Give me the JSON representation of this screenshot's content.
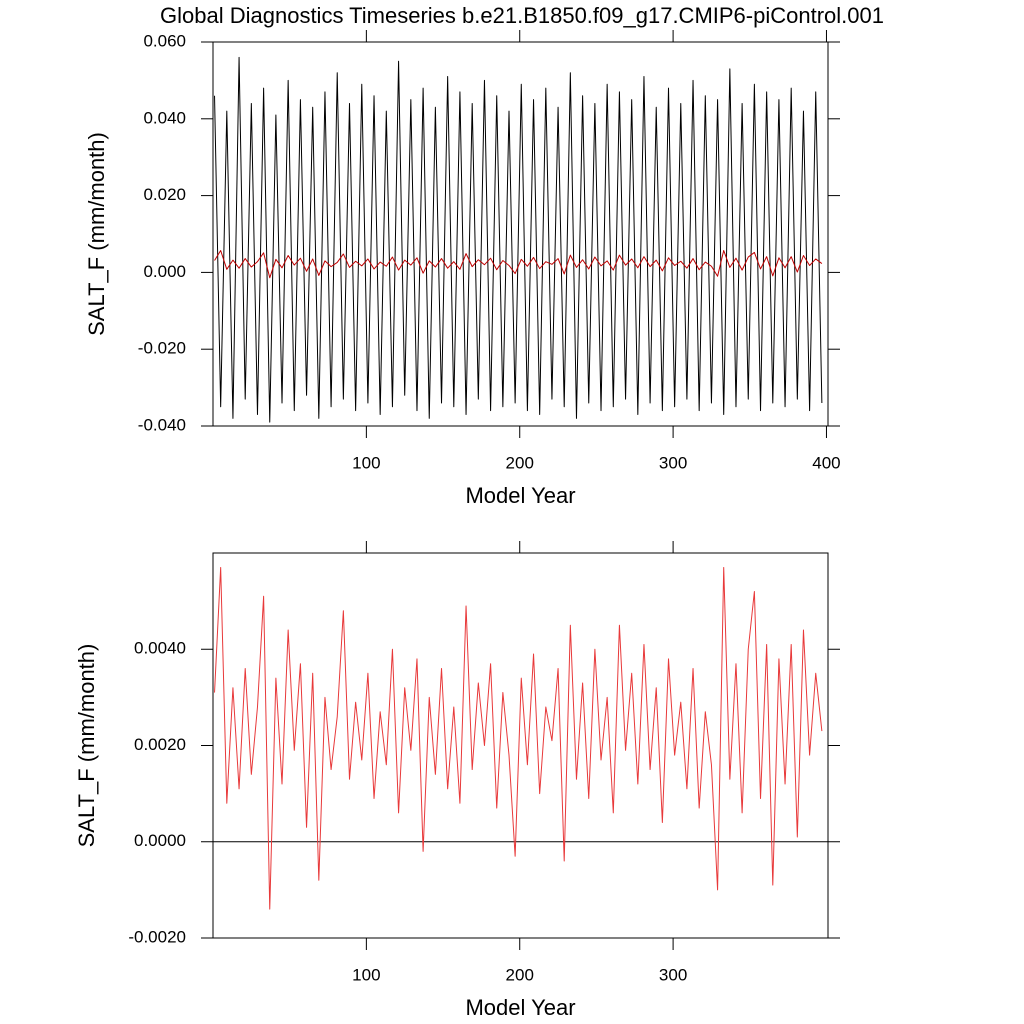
{
  "charts": [
    {
      "type": "line",
      "title": "Global Diagnostics Timeseries b.e21.B1850.f09_g17.CMIP6-piControl.001",
      "x_label": "Model Year",
      "y_label": "SALT_F (mm/month)",
      "xlim": [
        0,
        401
      ],
      "xticks": [
        100,
        200,
        300,
        400
      ],
      "ylim": [
        -0.04,
        0.06
      ],
      "yticks": [
        {
          "value": -0.04,
          "label": "-0.040"
        },
        {
          "value": -0.02,
          "label": "-0.020"
        },
        {
          "value": 0,
          "label": "0.000"
        },
        {
          "value": 0.02,
          "label": "0.020"
        },
        {
          "value": 0.04,
          "label": "0.040"
        },
        {
          "value": 0.06,
          "label": "0.060"
        }
      ],
      "x": [
        1,
        5,
        9,
        13,
        17,
        21,
        25,
        29,
        33,
        37,
        41,
        45,
        49,
        53,
        57,
        61,
        65,
        69,
        73,
        77,
        81,
        85,
        89,
        93,
        97,
        101,
        105,
        109,
        113,
        117,
        121,
        125,
        129,
        133,
        137,
        141,
        145,
        149,
        153,
        157,
        161,
        165,
        169,
        173,
        177,
        181,
        185,
        189,
        193,
        197,
        201,
        205,
        209,
        213,
        217,
        221,
        225,
        229,
        233,
        237,
        241,
        245,
        249,
        253,
        257,
        261,
        265,
        269,
        273,
        277,
        281,
        285,
        289,
        293,
        297,
        301,
        305,
        309,
        313,
        317,
        321,
        325,
        329,
        333,
        337,
        341,
        345,
        349,
        353,
        357,
        361,
        365,
        369,
        373,
        377,
        381,
        385,
        389,
        393,
        397
      ],
      "series": [
        {
          "color": "#000000",
          "values": [
            0.046,
            -0.035,
            0.042,
            -0.038,
            0.056,
            -0.033,
            0.044,
            -0.037,
            0.048,
            -0.039,
            0.041,
            -0.034,
            0.05,
            -0.036,
            0.045,
            -0.032,
            0.043,
            -0.038,
            0.047,
            -0.035,
            0.052,
            -0.033,
            0.044,
            -0.036,
            0.049,
            -0.034,
            0.046,
            -0.037,
            0.042,
            -0.035,
            0.055,
            -0.032,
            0.045,
            -0.036,
            0.048,
            -0.038,
            0.043,
            -0.034,
            0.051,
            -0.035,
            0.047,
            -0.037,
            0.044,
            -0.033,
            0.05,
            -0.036,
            0.046,
            -0.035,
            0.042,
            -0.034,
            0.049,
            -0.036,
            0.045,
            -0.037,
            0.048,
            -0.033,
            0.043,
            -0.035,
            0.052,
            -0.038,
            0.046,
            -0.034,
            0.044,
            -0.036,
            0.049,
            -0.035,
            0.047,
            -0.033,
            0.045,
            -0.037,
            0.051,
            -0.034,
            0.043,
            -0.036,
            0.048,
            -0.035,
            0.044,
            -0.033,
            0.05,
            -0.036,
            0.046,
            -0.034,
            0.045,
            -0.037,
            0.053,
            -0.035,
            0.044,
            -0.033,
            0.049,
            -0.036,
            0.047,
            -0.034,
            0.045,
            -0.035,
            0.048,
            -0.033,
            0.042,
            -0.036,
            0.047,
            -0.034
          ]
        },
        {
          "color": "#c00000",
          "values": [
            0.0031,
            0.0057,
            0.0008,
            0.0032,
            0.0011,
            0.0036,
            0.0014,
            0.0028,
            0.0051,
            -0.0014,
            0.0034,
            0.0012,
            0.0044,
            0.0019,
            0.0037,
            0.0003,
            0.0035,
            -0.0008,
            0.003,
            0.0015,
            0.0026,
            0.0048,
            0.0013,
            0.0029,
            0.0017,
            0.0035,
            0.0009,
            0.0027,
            0.0016,
            0.004,
            0.0006,
            0.0032,
            0.0019,
            0.0038,
            -0.0002,
            0.003,
            0.0014,
            0.0036,
            0.0011,
            0.0028,
            0.0008,
            0.0049,
            0.0015,
            0.0033,
            0.002,
            0.0037,
            0.0007,
            0.0031,
            0.0018,
            -0.0003,
            0.0034,
            0.0016,
            0.0039,
            0.001,
            0.0028,
            0.0021,
            0.0036,
            -0.0004,
            0.0045,
            0.0013,
            0.0033,
            0.0009,
            0.004,
            0.0017,
            0.003,
            0.0006,
            0.0045,
            0.0019,
            0.0035,
            0.0012,
            0.0041,
            0.0015,
            0.0032,
            0.0004,
            0.0038,
            0.0018,
            0.0029,
            0.0011,
            0.0036,
            0.0007,
            0.0027,
            0.0016,
            -0.001,
            0.0057,
            0.0013,
            0.0037,
            0.0006,
            0.004,
            0.0052,
            0.0009,
            0.0041,
            -0.0009,
            0.0038,
            0.0012,
            0.0041,
            0.0001,
            0.0044,
            0.0018,
            0.0035,
            0.0023
          ]
        }
      ]
    },
    {
      "type": "line",
      "x_label": "Model Year",
      "y_label": "SALT_F (mm/month)",
      "xlim": [
        0,
        401
      ],
      "xticks": [
        100,
        200,
        300
      ],
      "ylim": [
        -0.002,
        0.006
      ],
      "yticks": [
        {
          "value": -0.002,
          "label": "-0.0020"
        },
        {
          "value": 0,
          "label": "0.0000"
        },
        {
          "value": 0.002,
          "label": "0.0020"
        },
        {
          "value": 0.004,
          "label": "0.0040"
        }
      ],
      "reference_line": 0,
      "x": [
        1,
        5,
        9,
        13,
        17,
        21,
        25,
        29,
        33,
        37,
        41,
        45,
        49,
        53,
        57,
        61,
        65,
        69,
        73,
        77,
        81,
        85,
        89,
        93,
        97,
        101,
        105,
        109,
        113,
        117,
        121,
        125,
        129,
        133,
        137,
        141,
        145,
        149,
        153,
        157,
        161,
        165,
        169,
        173,
        177,
        181,
        185,
        189,
        193,
        197,
        201,
        205,
        209,
        213,
        217,
        221,
        225,
        229,
        233,
        237,
        241,
        245,
        249,
        253,
        257,
        261,
        265,
        269,
        273,
        277,
        281,
        285,
        289,
        293,
        297,
        301,
        305,
        309,
        313,
        317,
        321,
        325,
        329,
        333,
        337,
        341,
        345,
        349,
        353,
        357,
        361,
        365,
        369,
        373,
        377,
        381,
        385,
        389,
        393,
        397
      ],
      "series": [
        {
          "color": "#e8393a",
          "values": [
            0.0031,
            0.0057,
            0.0008,
            0.0032,
            0.0011,
            0.0036,
            0.0014,
            0.0028,
            0.0051,
            -0.0014,
            0.0034,
            0.0012,
            0.0044,
            0.0019,
            0.0037,
            0.0003,
            0.0035,
            -0.0008,
            0.003,
            0.0015,
            0.0026,
            0.0048,
            0.0013,
            0.0029,
            0.0017,
            0.0035,
            0.0009,
            0.0027,
            0.0016,
            0.004,
            0.0006,
            0.0032,
            0.0019,
            0.0038,
            -0.0002,
            0.003,
            0.0014,
            0.0036,
            0.0011,
            0.0028,
            0.0008,
            0.0049,
            0.0015,
            0.0033,
            0.002,
            0.0037,
            0.0007,
            0.0031,
            0.0018,
            -0.0003,
            0.0034,
            0.0016,
            0.0039,
            0.001,
            0.0028,
            0.0021,
            0.0036,
            -0.0004,
            0.0045,
            0.0013,
            0.0033,
            0.0009,
            0.004,
            0.0017,
            0.003,
            0.0006,
            0.0045,
            0.0019,
            0.0035,
            0.0012,
            0.0041,
            0.0015,
            0.0032,
            0.0004,
            0.0038,
            0.0018,
            0.0029,
            0.0011,
            0.0036,
            0.0007,
            0.0027,
            0.0016,
            -0.001,
            0.0057,
            0.0013,
            0.0037,
            0.0006,
            0.004,
            0.0052,
            0.0009,
            0.0041,
            -0.0009,
            0.0038,
            0.0012,
            0.0041,
            0.0001,
            0.0044,
            0.0018,
            0.0035,
            0.0023
          ]
        }
      ]
    }
  ]
}
